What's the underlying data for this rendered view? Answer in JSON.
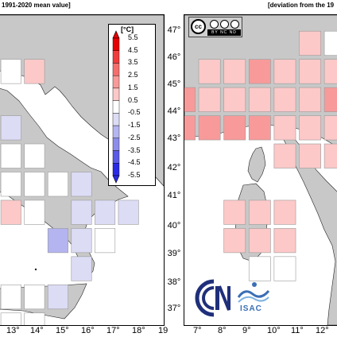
{
  "headers": {
    "left": "1991-2020 mean value]",
    "right": "[deviation from the 19"
  },
  "legend": {
    "unit": "[°C]",
    "ticks": [
      "5.5",
      "4.5",
      "3.5",
      "2.5",
      "1.5",
      "0.5",
      "-0.5",
      "-1.5",
      "-2.5",
      "-3.5",
      "-4.5",
      "-5.5"
    ],
    "colors": [
      "#e60000",
      "#f03c3c",
      "#f56e6e",
      "#f89a9a",
      "#fcc8c8",
      "#ffffff",
      "#dcdcf5",
      "#b4b4f0",
      "#8c8cea",
      "#5a5ae6",
      "#2a2ae6"
    ]
  },
  "lat_labels": [
    "47°",
    "46°",
    "45°",
    "44°",
    "43°",
    "42°",
    "41°",
    "40°",
    "39°",
    "38°",
    "37°"
  ],
  "lon_labels_left": [
    "13°",
    "14°",
    "15°",
    "16°",
    "17°",
    "18°",
    "19"
  ],
  "lon_labels_right": [
    "7°",
    "8°",
    "9°",
    "10°",
    "11°",
    "12°"
  ],
  "license": {
    "badge": "cc",
    "strip": "BY NC ND"
  },
  "logos": {
    "isac": "ISAC"
  },
  "colors": {
    "land": "#c8c8c8",
    "sea": "#ffffff",
    "no_data": "#c8c8c8"
  },
  "map_data": {
    "left_panel": {
      "lon_range": [
        12.0,
        19.0
      ],
      "lat_range": [
        36.5,
        47.5
      ],
      "cells": [
        {
          "lon": 12.5,
          "lat": 45.5,
          "value": 0.0
        },
        {
          "lon": 13.5,
          "lat": 45.5,
          "value": 1.0
        },
        {
          "lon": 12.5,
          "lat": 43.5,
          "value": -0.8
        },
        {
          "lon": 12.5,
          "lat": 42.5,
          "value": 0.0
        },
        {
          "lon": 13.5,
          "lat": 42.5,
          "value": 0.0
        },
        {
          "lon": 12.5,
          "lat": 41.5,
          "value": 0.0
        },
        {
          "lon": 13.5,
          "lat": 41.5,
          "value": 0.0
        },
        {
          "lon": 14.5,
          "lat": 41.5,
          "value": 0.0
        },
        {
          "lon": 15.5,
          "lat": 41.5,
          "value": -0.8
        },
        {
          "lon": 12.5,
          "lat": 40.5,
          "value": 0.8
        },
        {
          "lon": 13.5,
          "lat": 40.5,
          "value": 0.0
        },
        {
          "lon": 15.5,
          "lat": 40.5,
          "value": -0.8
        },
        {
          "lon": 16.5,
          "lat": 40.5,
          "value": -0.8
        },
        {
          "lon": 17.5,
          "lat": 40.5,
          "value": -0.8
        },
        {
          "lon": 14.5,
          "lat": 39.5,
          "value": -2.0
        },
        {
          "lon": 15.5,
          "lat": 39.5,
          "value": -0.8
        },
        {
          "lon": 16.5,
          "lat": 39.5,
          "value": 0.0
        },
        {
          "lon": 15.5,
          "lat": 38.5,
          "value": -0.8
        },
        {
          "lon": 12.5,
          "lat": 37.5,
          "value": 0.0
        },
        {
          "lon": 13.5,
          "lat": 37.5,
          "value": 0.0
        },
        {
          "lon": 14.5,
          "lat": 37.5,
          "value": -0.8
        },
        {
          "lon": 12.5,
          "lat": 36.5,
          "value": 0.0
        },
        {
          "lon": 13.5,
          "lat": 36.5,
          "value": 0.0
        }
      ]
    },
    "right_panel": {
      "lon_range": [
        6.5,
        12.7
      ],
      "lat_range": [
        36.5,
        47.5
      ],
      "cells": [
        {
          "lon": 11.5,
          "lat": 46.5,
          "value": 1.0
        },
        {
          "lon": 12.5,
          "lat": 46.5,
          "value": 0.0
        },
        {
          "lon": 7.5,
          "lat": 45.5,
          "value": 1.0
        },
        {
          "lon": 8.5,
          "lat": 45.5,
          "value": 1.5
        },
        {
          "lon": 9.5,
          "lat": 45.5,
          "value": 2.0
        },
        {
          "lon": 10.5,
          "lat": 45.5,
          "value": 1.5
        },
        {
          "lon": 11.5,
          "lat": 45.5,
          "value": 1.0
        },
        {
          "lon": 12.5,
          "lat": 45.5,
          "value": 1.0
        },
        {
          "lon": 6.5,
          "lat": 44.5,
          "value": 2.0
        },
        {
          "lon": 7.5,
          "lat": 44.5,
          "value": 1.5
        },
        {
          "lon": 8.5,
          "lat": 44.5,
          "value": 1.5
        },
        {
          "lon": 9.5,
          "lat": 44.5,
          "value": 1.5
        },
        {
          "lon": 10.5,
          "lat": 44.5,
          "value": 1.5
        },
        {
          "lon": 11.5,
          "lat": 44.5,
          "value": 1.5
        },
        {
          "lon": 12.5,
          "lat": 44.5,
          "value": 2.0
        },
        {
          "lon": 6.5,
          "lat": 43.5,
          "value": 2.5
        },
        {
          "lon": 7.5,
          "lat": 43.5,
          "value": 2.5
        },
        {
          "lon": 8.5,
          "lat": 43.5,
          "value": 2.5
        },
        {
          "lon": 9.5,
          "lat": 43.5,
          "value": 2.0
        },
        {
          "lon": 10.5,
          "lat": 43.5,
          "value": 1.5
        },
        {
          "lon": 11.5,
          "lat": 43.5,
          "value": 1.5
        },
        {
          "lon": 12.5,
          "lat": 43.5,
          "value": 1.5
        },
        {
          "lon": 10.5,
          "lat": 42.5,
          "value": 1.5
        },
        {
          "lon": 11.5,
          "lat": 42.5,
          "value": 1.5
        },
        {
          "lon": 12.5,
          "lat": 42.5,
          "value": 1.0
        },
        {
          "lon": 8.5,
          "lat": 40.5,
          "value": 1.0
        },
        {
          "lon": 9.5,
          "lat": 40.5,
          "value": 1.0
        },
        {
          "lon": 10.5,
          "lat": 40.5,
          "value": 1.5
        },
        {
          "lon": 8.5,
          "lat": 39.5,
          "value": 1.0
        },
        {
          "lon": 9.5,
          "lat": 39.5,
          "value": 1.0
        },
        {
          "lon": 10.5,
          "lat": 39.5,
          "value": 1.0
        },
        {
          "lon": 9.5,
          "lat": 38.5,
          "value": 0.0
        },
        {
          "lon": 10.5,
          "lat": 38.5,
          "value": 0.0
        }
      ]
    }
  }
}
